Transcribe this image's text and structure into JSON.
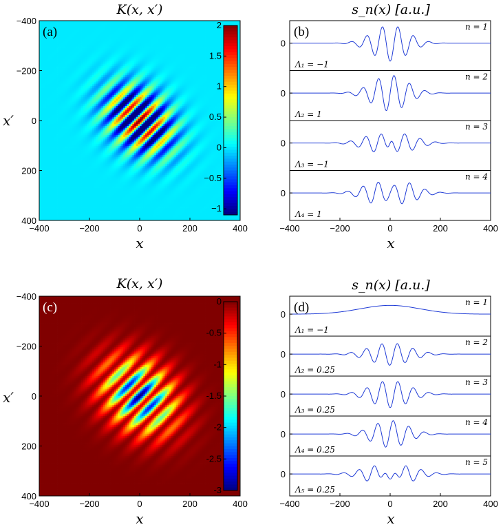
{
  "chart_data": [
    {
      "id": "a",
      "type": "heatmap",
      "panel_label": "(a)",
      "title": "K(x, x′)",
      "xlabel": "x",
      "ylabel": "x′",
      "xlim": [
        -400,
        400
      ],
      "ylim": [
        -400,
        400
      ],
      "xticks": [
        "−400",
        "−200",
        "0",
        "200",
        "400"
      ],
      "yticks": [
        "−400",
        "−200",
        "0",
        "200",
        "400"
      ],
      "colorbar": {
        "min": -1.1,
        "max": 2.0,
        "ticks": [
          "2",
          "1.5",
          "1",
          "0.5",
          "0",
          "−0.5",
          "−1"
        ],
        "tick_values": [
          2,
          1.5,
          1,
          0.5,
          0,
          -0.5,
          -1
        ],
        "colormap": "jet"
      },
      "description_function": "oscillating diagonal fringes"
    },
    {
      "id": "b",
      "type": "line",
      "panel_label": "(b)",
      "title": "s_n(x) [a.u.]",
      "xlabel": "x",
      "xlim": [
        -400,
        400
      ],
      "xticks": [
        "−400",
        "−200",
        "0",
        "200",
        "400"
      ],
      "line_color": "#1f3bd6",
      "series": [
        {
          "name": "n = 1",
          "lambda_label": "Λ₁ = −1",
          "zero_label": "0"
        },
        {
          "name": "n = 2",
          "lambda_label": "Λ₂ = 1",
          "zero_label": "0"
        },
        {
          "name": "n = 3",
          "lambda_label": "Λ₃ = −1",
          "zero_label": "0"
        },
        {
          "name": "n = 4",
          "lambda_label": "Λ₄ = 1",
          "zero_label": "0"
        }
      ]
    },
    {
      "id": "c",
      "type": "heatmap",
      "panel_label": "(c)",
      "title": "K(x, x′)",
      "xlabel": "x",
      "ylabel": "x′",
      "xlim": [
        -400,
        400
      ],
      "ylim": [
        -400,
        400
      ],
      "xticks": [
        "−400",
        "−200",
        "0",
        "200",
        "400"
      ],
      "yticks": [
        "−400",
        "−200",
        "0",
        "200",
        "400"
      ],
      "colorbar": {
        "min": -3.0,
        "max": 0.0,
        "ticks": [
          "0",
          "-0.5",
          "-1",
          "-1.5",
          "-2",
          "-2.5",
          "-3"
        ],
        "tick_values": [
          0,
          -0.5,
          -1,
          -1.5,
          -2,
          -2.5,
          -3
        ],
        "colormap": "jet"
      }
    },
    {
      "id": "d",
      "type": "line",
      "panel_label": "(d)",
      "title": "s_n(x) [a.u.]",
      "xlabel": "x",
      "xlim": [
        -400,
        400
      ],
      "xticks": [
        "−400",
        "−200",
        "0",
        "200",
        "400"
      ],
      "line_color": "#1f3bd6",
      "series": [
        {
          "name": "n = 1",
          "lambda_label": "Λ₁ = −1",
          "zero_label": "0"
        },
        {
          "name": "n = 2",
          "lambda_label": "Λ₂ = 0.25",
          "zero_label": "0"
        },
        {
          "name": "n = 3",
          "lambda_label": "Λ₃ = 0.25",
          "zero_label": "0"
        },
        {
          "name": "n = 4",
          "lambda_label": "Λ₄ = 0.25",
          "zero_label": "0"
        },
        {
          "name": "n = 5",
          "lambda_label": "Λ₅ = 0.25",
          "zero_label": "0"
        }
      ]
    }
  ]
}
